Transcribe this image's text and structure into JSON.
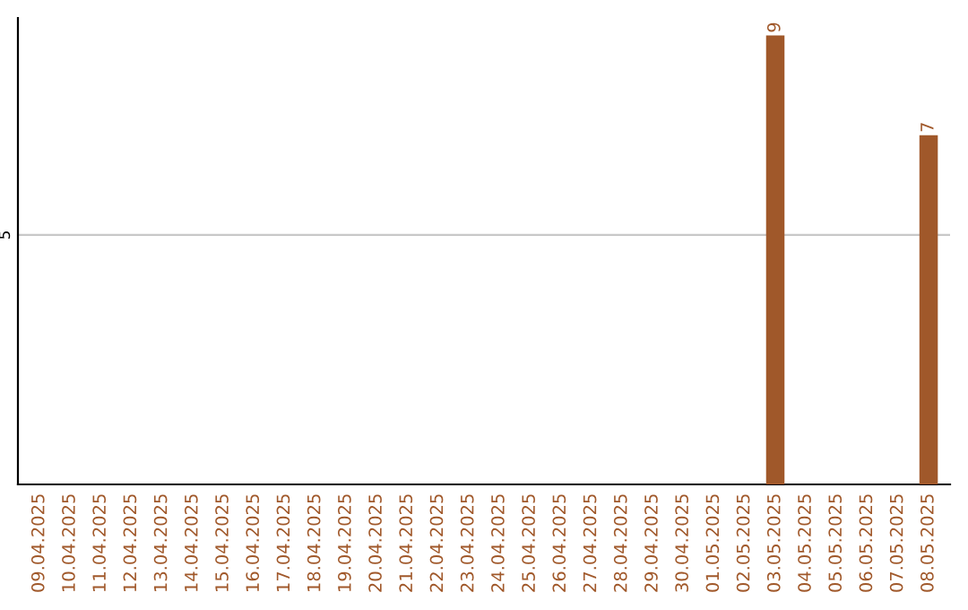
{
  "chart_data": {
    "type": "bar",
    "categories": [
      "09.04.2025",
      "10.04.2025",
      "11.04.2025",
      "12.04.2025",
      "13.04.2025",
      "14.04.2025",
      "15.04.2025",
      "16.04.2025",
      "17.04.2025",
      "18.04.2025",
      "19.04.2025",
      "20.04.2025",
      "21.04.2025",
      "22.04.2025",
      "23.04.2025",
      "24.04.2025",
      "25.04.2025",
      "26.04.2025",
      "27.04.2025",
      "28.04.2025",
      "29.04.2025",
      "30.04.2025",
      "01.05.2025",
      "02.05.2025",
      "03.05.2025",
      "04.05.2025",
      "05.05.2025",
      "06.05.2025",
      "07.05.2025",
      "08.05.2025"
    ],
    "values": [
      null,
      null,
      null,
      null,
      null,
      null,
      null,
      null,
      null,
      null,
      null,
      null,
      null,
      null,
      null,
      null,
      null,
      null,
      null,
      null,
      null,
      null,
      null,
      null,
      9,
      null,
      null,
      null,
      null,
      7
    ],
    "color": "#a0582a",
    "ylim": [
      0,
      9.35
    ],
    "yticks": [
      5
    ],
    "grid": "y",
    "data_labels": true
  }
}
